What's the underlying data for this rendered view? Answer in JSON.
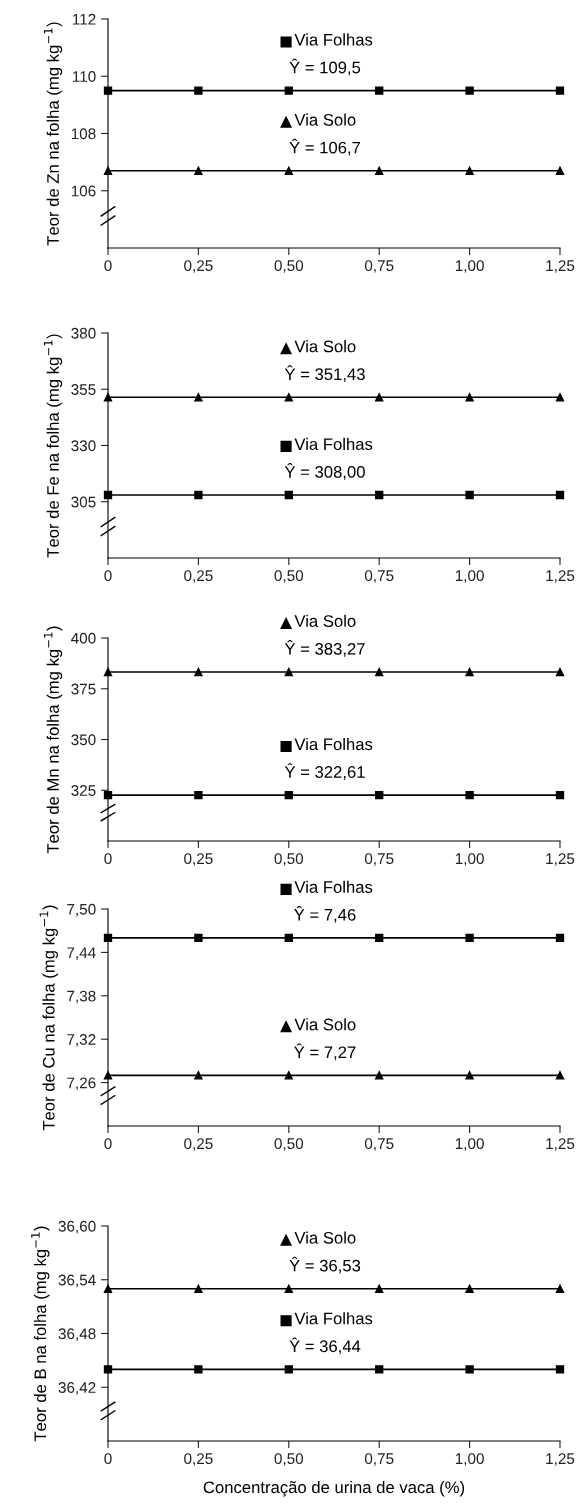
{
  "chart_data": [
    {
      "type": "line",
      "ylabel": "Teor de Zn na folha (mg kg$^{−1}$)",
      "x": [
        0,
        0.25,
        0.5,
        0.75,
        1.0,
        1.25
      ],
      "xlim": [
        0,
        1.25
      ],
      "xticks": [
        0,
        {
          "value": 0.25,
          "label": "0,25"
        },
        {
          "value": 0.5,
          "label": "0,50"
        },
        {
          "value": 0.75,
          "label": "0,75"
        },
        {
          "value": 1.0,
          "label": "1,00"
        },
        {
          "value": 1.25,
          "label": "1,25"
        }
      ],
      "ylim": [
        104,
        112
      ],
      "yticks": [
        106,
        108,
        110,
        112
      ],
      "grid": false,
      "legend": "top",
      "line_style": "solid",
      "series": [
        {
          "name": "Via Folhas",
          "color": "#000000",
          "marker": "square",
          "values": [
            109.5,
            109.5,
            109.5,
            109.5,
            109.5,
            109.5
          ]
        },
        {
          "name": "Via Solo",
          "color": "#000000",
          "marker": "triangle",
          "values": [
            106.7,
            106.7,
            106.7,
            106.7,
            106.7,
            106.7
          ]
        }
      ],
      "annotations": [
        "Ŷ = 109,5",
        "Ŷ = 106,7"
      ]
    },
    {
      "type": "line",
      "ylabel": "Teor de Fe na folha (mg kg$^{−1}$)",
      "x": [
        0,
        0.25,
        0.5,
        0.75,
        1.0,
        1.25
      ],
      "xlim": [
        0,
        1.25
      ],
      "xticks": [
        0,
        {
          "value": 0.25,
          "label": "0,25"
        },
        {
          "value": 0.5,
          "label": "0,50"
        },
        {
          "value": 0.75,
          "label": "0,75"
        },
        {
          "value": 1.0,
          "label": "1,00"
        },
        {
          "value": 1.25,
          "label": "1,25"
        }
      ],
      "ylim": [
        280,
        380
      ],
      "yticks": [
        305,
        330,
        355,
        380
      ],
      "grid": false,
      "legend": "top",
      "line_style": "solid",
      "series": [
        {
          "name": "Via Solo",
          "color": "#000000",
          "marker": "triangle",
          "values": [
            351.43,
            351.43,
            351.43,
            351.43,
            351.43,
            351.43
          ]
        },
        {
          "name": "Via Folhas",
          "color": "#000000",
          "marker": "square",
          "values": [
            308.0,
            308.0,
            308.0,
            308.0,
            308.0,
            308.0
          ]
        }
      ],
      "annotations": [
        "Ŷ = 351,43",
        "Ŷ = 308,00"
      ]
    },
    {
      "type": "line",
      "ylabel": "Teor de Mn na folha (mg kg$^{−1}$)",
      "x": [
        0,
        0.25,
        0.5,
        0.75,
        1.0,
        1.25
      ],
      "xlim": [
        0,
        1.25
      ],
      "xticks": [
        0,
        {
          "value": 0.25,
          "label": "0,25"
        },
        {
          "value": 0.5,
          "label": "0,50"
        },
        {
          "value": 0.75,
          "label": "0,75"
        },
        {
          "value": 1.0,
          "label": "1,00"
        },
        {
          "value": 1.25,
          "label": "1,25"
        }
      ],
      "ylim": [
        300,
        400
      ],
      "yticks": [
        325,
        350,
        375,
        400
      ],
      "grid": false,
      "legend": "center",
      "line_style": "solid",
      "series": [
        {
          "name": "Via Solo",
          "color": "#000000",
          "marker": "triangle",
          "values": [
            383.27,
            383.27,
            383.27,
            383.27,
            383.27,
            383.27
          ]
        },
        {
          "name": "Via Folhas",
          "color": "#000000",
          "marker": "square",
          "values": [
            322.61,
            322.61,
            322.61,
            322.61,
            322.61,
            322.61
          ]
        }
      ],
      "annotations": [
        "Ŷ = 383,27",
        "Ŷ = 322,61"
      ]
    },
    {
      "type": "line",
      "ylabel": "Teor de Cu na folha (mg kg$^{−1}$)",
      "x": [
        0,
        0.25,
        0.5,
        0.75,
        1.0,
        1.25
      ],
      "xlim": [
        0,
        1.25
      ],
      "xticks": [
        0,
        {
          "value": 0.25,
          "label": "0,25"
        },
        {
          "value": 0.5,
          "label": "0,50"
        },
        {
          "value": 0.75,
          "label": "0,75"
        },
        {
          "value": 1.0,
          "label": "1,00"
        },
        {
          "value": 1.25,
          "label": "1,25"
        }
      ],
      "ylim": [
        7.2,
        7.5
      ],
      "yticks": [
        {
          "value": 7.26,
          "label": "7,26"
        },
        {
          "value": 7.32,
          "label": "7,32"
        },
        {
          "value": 7.38,
          "label": "7,38"
        },
        {
          "value": 7.44,
          "label": "7,44"
        },
        {
          "value": 7.5,
          "label": "7,50"
        }
      ],
      "grid": false,
      "legend": "center",
      "line_style": "solid",
      "series": [
        {
          "name": "Via Folhas",
          "color": "#000000",
          "marker": "square",
          "values": [
            7.46,
            7.46,
            7.46,
            7.46,
            7.46,
            7.46
          ]
        },
        {
          "name": "Via Solo",
          "color": "#000000",
          "marker": "triangle",
          "values": [
            7.27,
            7.27,
            7.27,
            7.27,
            7.27,
            7.27
          ]
        }
      ],
      "annotations": [
        "Ŷ = 7,46",
        "Ŷ = 7,27"
      ]
    },
    {
      "type": "line",
      "ylabel": "Teor de B na folha (mg kg$^{−1}$)",
      "xlabel": "Concentração de urina de vaca (%)",
      "x": [
        0,
        0.25,
        0.5,
        0.75,
        1.0,
        1.25
      ],
      "xlim": [
        0,
        1.25
      ],
      "xticks": [
        0,
        {
          "value": 0.25,
          "label": "0,25"
        },
        {
          "value": 0.5,
          "label": "0,50"
        },
        {
          "value": 0.75,
          "label": "0,75"
        },
        {
          "value": 1.0,
          "label": "1,00"
        },
        {
          "value": 1.25,
          "label": "1,25"
        }
      ],
      "ylim": [
        36.36,
        36.6
      ],
      "yticks": [
        {
          "value": 36.42,
          "label": "36,42"
        },
        {
          "value": 36.48,
          "label": "36,48"
        },
        {
          "value": 36.54,
          "label": "36,54"
        },
        {
          "value": 36.6,
          "label": "36,60"
        }
      ],
      "grid": false,
      "legend": "top",
      "line_style": "solid",
      "series": [
        {
          "name": "Via Solo",
          "color": "#000000",
          "marker": "triangle",
          "values": [
            36.53,
            36.53,
            36.53,
            36.53,
            36.53,
            36.53
          ]
        },
        {
          "name": "Via Folhas",
          "color": "#000000",
          "marker": "square",
          "values": [
            36.44,
            36.44,
            36.44,
            36.44,
            36.44,
            36.44
          ]
        }
      ],
      "annotations": [
        "Ŷ = 36,53",
        "Ŷ = 36,44"
      ]
    }
  ]
}
